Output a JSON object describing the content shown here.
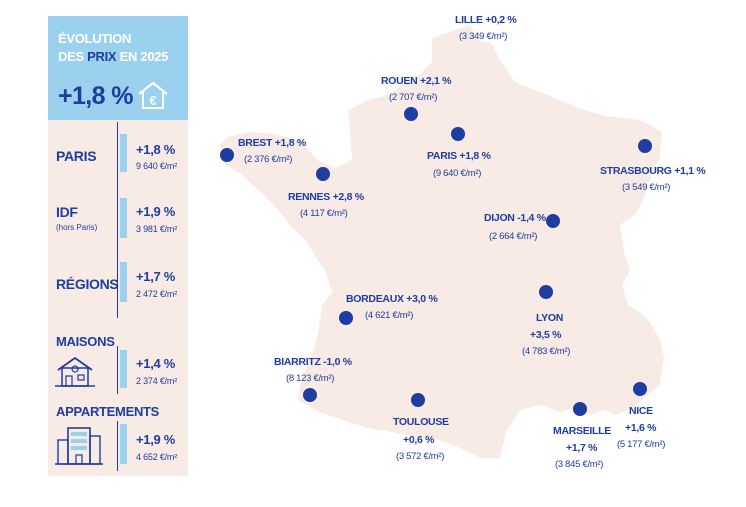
{
  "header": {
    "line1": "ÉVOLUTION",
    "line2_a": "DES",
    "line2_b": "PRIX",
    "line2_c": "EN 2025",
    "value": "+1,8 %",
    "icon": "euro-house-icon"
  },
  "rows": {
    "paris": {
      "label": "PARIS",
      "pct": "+1,8 %",
      "price": "9 640 €/m²"
    },
    "idf": {
      "label": "IDF",
      "sub": "(hors Paris)",
      "pct": "+1,9 %",
      "price": "3 981 €/m²"
    },
    "regions": {
      "label": "RÉGIONS",
      "pct": "+1,7 %",
      "price": "2 472 €/m²"
    },
    "maisons": {
      "label": "MAISONS",
      "pct": "+1,4 %",
      "price": "2 374 €/m²",
      "icon": "house-icon"
    },
    "appartements": {
      "label": "APPARTEMENTS",
      "pct": "+1,9 %",
      "price": "4 652 €/m²",
      "icon": "apartment-building-icon"
    }
  },
  "cities": {
    "lille": {
      "name": "LILLE +0,2 %",
      "price": "(3 349 €/m²)"
    },
    "rouen": {
      "name": "ROUEN +2,1 %",
      "price": "(2 707 €/m²)"
    },
    "paris": {
      "name": "PARIS +1,8 %",
      "price": "(9 640 €/m²)"
    },
    "brest": {
      "name": "BREST +1,8 %",
      "price": "(2 376 €/m²)"
    },
    "rennes": {
      "name": "RENNES +2,8 %",
      "price": "(4 117 €/m²)"
    },
    "strasbourg": {
      "name": "STRASBOURG +1,1 %",
      "price": "(3 549 €/m²)"
    },
    "dijon": {
      "name": "DIJON -1,4 %",
      "price": "(2 664 €/m²)"
    },
    "bordeaux": {
      "name": "BORDEAUX +3,0 %",
      "price": "(4 621 €/m²)"
    },
    "lyon": {
      "name": "LYON",
      "pct": "+3,5 %",
      "price": "(4 783 €/m²)"
    },
    "biarritz": {
      "name": "BIARRITZ -1,0 %",
      "price": "(8 123 €/m²)"
    },
    "toulouse": {
      "name": "TOULOUSE",
      "pct": "+0,6 %",
      "price": "(3 572 €/m²)"
    },
    "marseille": {
      "name": "MARSEILLE",
      "pct": "+1,7 %",
      "price": "(3 845 €/m²)"
    },
    "nice": {
      "name": "NICE",
      "pct": "+1,6 %",
      "price": "(5 177 €/m²)"
    }
  },
  "colors": {
    "navy": "#1d3da0",
    "light_blue": "#9bd1ef",
    "map_fill": "#f8ebe5"
  }
}
